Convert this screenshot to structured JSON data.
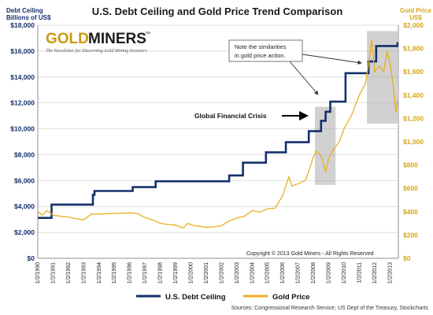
{
  "chart_data": {
    "type": "line",
    "title": "U.S. Debt Ceiling and Gold Price Trend Comparison",
    "y_left_label_lines": [
      "Debt Ceiling",
      "Billions of US$"
    ],
    "y_right_label_lines": [
      "Gold Price",
      "US$"
    ],
    "y_left_ticks": [
      "$0",
      "$2,000",
      "$4,000",
      "$6,000",
      "$8,000",
      "$10,000",
      "$12,000",
      "$14,000",
      "$16,000",
      "$18,000"
    ],
    "y_right_ticks": [
      "$0",
      "$200",
      "$400",
      "$600",
      "$800",
      "$1,000",
      "$1,200",
      "$1,400",
      "$1,600",
      "$1,800",
      "$2,000"
    ],
    "y_left_range": [
      0,
      18000
    ],
    "y_right_range": [
      0,
      2000
    ],
    "x_ticks": [
      "1/2/1990",
      "1/2/1991",
      "1/2/1992",
      "1/2/1993",
      "1/2/1994",
      "1/2/1995",
      "1/2/1996",
      "1/2/1997",
      "1/2/1998",
      "1/2/1999",
      "1/2/2000",
      "1/2/2001",
      "1/2/2002",
      "1/2/2003",
      "1/2/2004",
      "1/2/2005",
      "1/2/2006",
      "1/2/2007",
      "1/2/2008",
      "1/2/2009",
      "1/2/2010",
      "1/2/2011",
      "1/2/2012",
      "1/2/2013"
    ],
    "grid": true,
    "legend_position": "bottom",
    "series": [
      {
        "name": "U.S. Debt Ceiling",
        "color": "#13306b",
        "step": true,
        "x": [
          1990.0,
          1990.7,
          1990.9,
          1993.6,
          1993.7,
          1996.2,
          1997.7,
          2002.5,
          2003.4,
          2004.9,
          2006.2,
          2007.7,
          2008.5,
          2008.8,
          2009.1,
          2010.1,
          2011.6,
          2012.1,
          2013.3,
          2013.5
        ],
        "values": [
          3122,
          3122,
          4145,
          4900,
          5200,
          5500,
          5950,
          6400,
          7384,
          8184,
          8965,
          9815,
          10615,
          11315,
          12104,
          14294,
          15194,
          16394,
          16394,
          16700
        ]
      },
      {
        "name": "Gold Price",
        "color": "#e8b01e",
        "step": false,
        "x": [
          1990.0,
          1990.3,
          1990.6,
          1991.0,
          1991.5,
          1992.0,
          1992.5,
          1993.0,
          1993.5,
          1994.0,
          1995.0,
          1996.0,
          1996.5,
          1997.0,
          1997.5,
          1998.0,
          1998.5,
          1999.0,
          1999.5,
          1999.8,
          2000.2,
          2000.6,
          2001.0,
          2001.5,
          2002.0,
          2002.5,
          2003.0,
          2003.5,
          2004.0,
          2004.5,
          2005.0,
          2005.5,
          2006.0,
          2006.4,
          2006.6,
          2007.0,
          2007.5,
          2008.0,
          2008.2,
          2008.5,
          2008.8,
          2009.0,
          2009.3,
          2009.7,
          2010.0,
          2010.5,
          2011.0,
          2011.4,
          2011.7,
          2011.8,
          2012.0,
          2012.3,
          2012.6,
          2012.8,
          2013.0,
          2013.2,
          2013.4,
          2013.5
        ],
        "values": [
          400,
          370,
          410,
          370,
          360,
          355,
          340,
          330,
          380,
          380,
          385,
          390,
          385,
          350,
          330,
          300,
          290,
          285,
          260,
          300,
          280,
          275,
          265,
          270,
          280,
          320,
          345,
          360,
          410,
          395,
          425,
          430,
          540,
          700,
          620,
          640,
          670,
          870,
          920,
          880,
          740,
          860,
          930,
          1000,
          1110,
          1230,
          1400,
          1500,
          1750,
          1880,
          1600,
          1650,
          1600,
          1780,
          1680,
          1500,
          1250,
          1350
        ]
      }
    ],
    "annotations": {
      "note_lines": [
        "Note the similarities",
        "in gold price action."
      ],
      "crisis_label": "Global Financial Crisis",
      "copyright": "Copyright © 2013 Gold Miners - All Rights Reserved",
      "sources": "Sources: Congressional Research Service,  US Dept  of the Treasury, Stockcharts"
    },
    "logo": {
      "word1": "GOLD",
      "word2": "MINERS",
      "tm": "™",
      "tagline": "The Newsletter for Discerning Gold Mining Investors"
    }
  }
}
